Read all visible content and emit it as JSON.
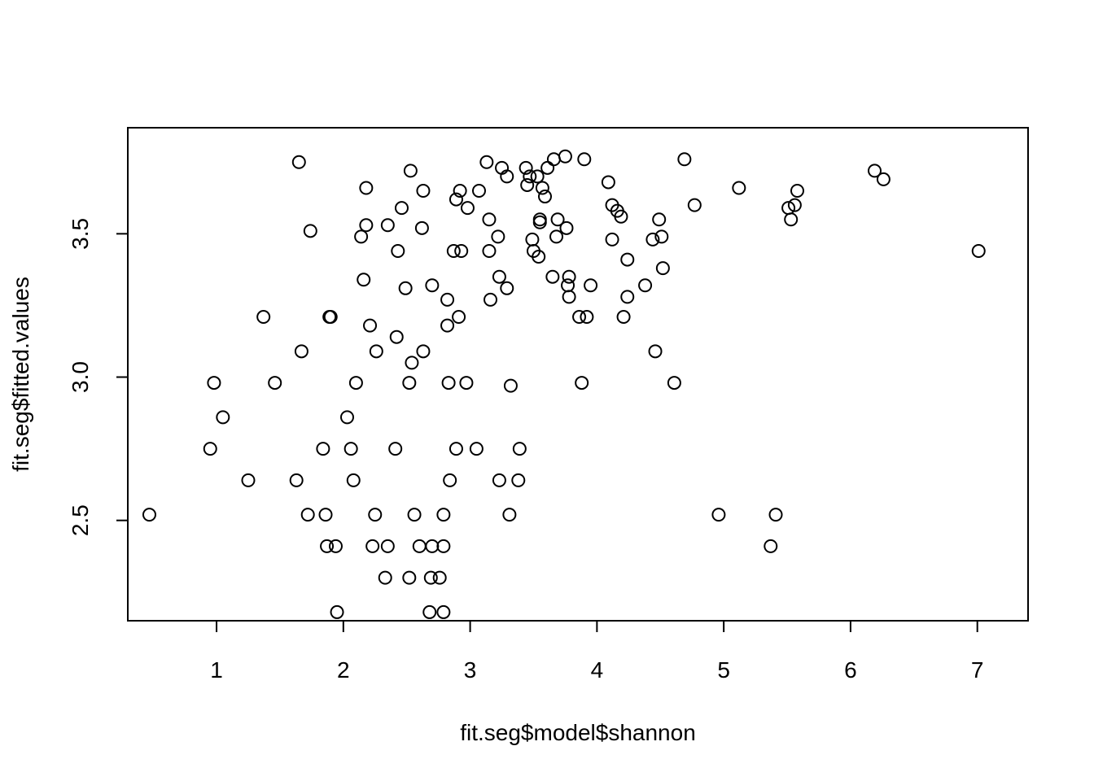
{
  "chart_data": {
    "type": "scatter",
    "title": "",
    "xlabel": "fit.seg$model$shannon",
    "ylabel": "fit.seg$fitted.values",
    "xlim": [
      0.3,
      7.4
    ],
    "ylim": [
      2.15,
      3.87
    ],
    "xticks": [
      1,
      2,
      3,
      4,
      5,
      6,
      7
    ],
    "xtick_labels": [
      "1",
      "2",
      "3",
      "4",
      "5",
      "6",
      "7"
    ],
    "yticks": [
      2.5,
      3.0,
      3.5
    ],
    "ytick_labels": [
      "2.5",
      "3.0",
      "3.5"
    ],
    "grid": false,
    "legend": "none",
    "marker": "open-circle",
    "colors": {
      "marker": "#000000",
      "axes": "#000000",
      "background": "#ffffff"
    },
    "points": [
      [
        0.47,
        2.52
      ],
      [
        0.95,
        2.75
      ],
      [
        0.98,
        2.98
      ],
      [
        1.05,
        2.86
      ],
      [
        1.25,
        2.64
      ],
      [
        1.37,
        3.21
      ],
      [
        1.46,
        2.98
      ],
      [
        1.63,
        2.64
      ],
      [
        1.65,
        3.75
      ],
      [
        1.67,
        3.09
      ],
      [
        1.72,
        2.52
      ],
      [
        1.74,
        3.51
      ],
      [
        1.84,
        2.75
      ],
      [
        1.86,
        2.52
      ],
      [
        1.87,
        2.41
      ],
      [
        1.89,
        3.21
      ],
      [
        1.9,
        3.21
      ],
      [
        1.94,
        2.41
      ],
      [
        1.95,
        2.18
      ],
      [
        2.03,
        2.86
      ],
      [
        2.06,
        2.75
      ],
      [
        2.08,
        2.64
      ],
      [
        2.1,
        2.98
      ],
      [
        2.14,
        3.49
      ],
      [
        2.16,
        3.34
      ],
      [
        2.18,
        3.53
      ],
      [
        2.18,
        3.66
      ],
      [
        2.21,
        3.18
      ],
      [
        2.23,
        2.41
      ],
      [
        2.25,
        2.52
      ],
      [
        2.26,
        3.09
      ],
      [
        2.33,
        2.3
      ],
      [
        2.35,
        2.41
      ],
      [
        2.35,
        3.53
      ],
      [
        2.41,
        2.75
      ],
      [
        2.42,
        3.14
      ],
      [
        2.43,
        3.44
      ],
      [
        2.46,
        3.59
      ],
      [
        2.49,
        3.31
      ],
      [
        2.52,
        2.3
      ],
      [
        2.52,
        2.98
      ],
      [
        2.53,
        3.72
      ],
      [
        2.54,
        3.05
      ],
      [
        2.56,
        2.52
      ],
      [
        2.6,
        2.41
      ],
      [
        2.62,
        3.52
      ],
      [
        2.63,
        3.65
      ],
      [
        2.63,
        3.09
      ],
      [
        2.68,
        2.18
      ],
      [
        2.69,
        2.3
      ],
      [
        2.7,
        2.41
      ],
      [
        2.7,
        3.32
      ],
      [
        2.76,
        2.3
      ],
      [
        2.79,
        2.41
      ],
      [
        2.79,
        2.52
      ],
      [
        2.79,
        2.18
      ],
      [
        2.82,
        3.27
      ],
      [
        2.82,
        3.18
      ],
      [
        2.83,
        2.98
      ],
      [
        2.84,
        2.64
      ],
      [
        2.87,
        3.44
      ],
      [
        2.89,
        2.75
      ],
      [
        2.89,
        3.62
      ],
      [
        2.91,
        3.21
      ],
      [
        2.92,
        3.65
      ],
      [
        2.93,
        3.44
      ],
      [
        2.97,
        2.98
      ],
      [
        2.98,
        3.59
      ],
      [
        3.05,
        2.75
      ],
      [
        3.07,
        3.65
      ],
      [
        3.13,
        3.75
      ],
      [
        3.15,
        3.55
      ],
      [
        3.15,
        3.44
      ],
      [
        3.16,
        3.27
      ],
      [
        3.22,
        3.49
      ],
      [
        3.23,
        3.35
      ],
      [
        3.23,
        2.64
      ],
      [
        3.25,
        3.73
      ],
      [
        3.29,
        3.7
      ],
      [
        3.29,
        3.31
      ],
      [
        3.31,
        2.52
      ],
      [
        3.32,
        2.97
      ],
      [
        3.38,
        2.64
      ],
      [
        3.39,
        2.75
      ],
      [
        3.44,
        3.73
      ],
      [
        3.45,
        3.67
      ],
      [
        3.47,
        3.7
      ],
      [
        3.49,
        3.48
      ],
      [
        3.5,
        3.44
      ],
      [
        3.53,
        3.7
      ],
      [
        3.54,
        3.42
      ],
      [
        3.55,
        3.55
      ],
      [
        3.55,
        3.54
      ],
      [
        3.57,
        3.66
      ],
      [
        3.59,
        3.63
      ],
      [
        3.61,
        3.73
      ],
      [
        3.65,
        3.35
      ],
      [
        3.66,
        3.76
      ],
      [
        3.68,
        3.49
      ],
      [
        3.69,
        3.55
      ],
      [
        3.75,
        3.77
      ],
      [
        3.76,
        3.52
      ],
      [
        3.77,
        3.32
      ],
      [
        3.78,
        3.28
      ],
      [
        3.78,
        3.35
      ],
      [
        3.86,
        3.21
      ],
      [
        3.88,
        2.98
      ],
      [
        3.9,
        3.76
      ],
      [
        3.92,
        3.21
      ],
      [
        3.95,
        3.32
      ],
      [
        4.09,
        3.68
      ],
      [
        4.12,
        3.6
      ],
      [
        4.12,
        3.48
      ],
      [
        4.16,
        3.58
      ],
      [
        4.19,
        3.56
      ],
      [
        4.21,
        3.21
      ],
      [
        4.24,
        3.41
      ],
      [
        4.24,
        3.28
      ],
      [
        4.38,
        3.32
      ],
      [
        4.44,
        3.48
      ],
      [
        4.46,
        3.09
      ],
      [
        4.49,
        3.55
      ],
      [
        4.51,
        3.49
      ],
      [
        4.52,
        3.38
      ],
      [
        4.61,
        2.98
      ],
      [
        4.69,
        3.76
      ],
      [
        4.77,
        3.6
      ],
      [
        4.96,
        2.52
      ],
      [
        5.12,
        3.66
      ],
      [
        5.37,
        2.41
      ],
      [
        5.41,
        2.52
      ],
      [
        5.51,
        3.59
      ],
      [
        5.53,
        3.55
      ],
      [
        5.56,
        3.6
      ],
      [
        5.58,
        3.65
      ],
      [
        6.19,
        3.72
      ],
      [
        6.26,
        3.69
      ],
      [
        7.01,
        3.44
      ]
    ]
  }
}
